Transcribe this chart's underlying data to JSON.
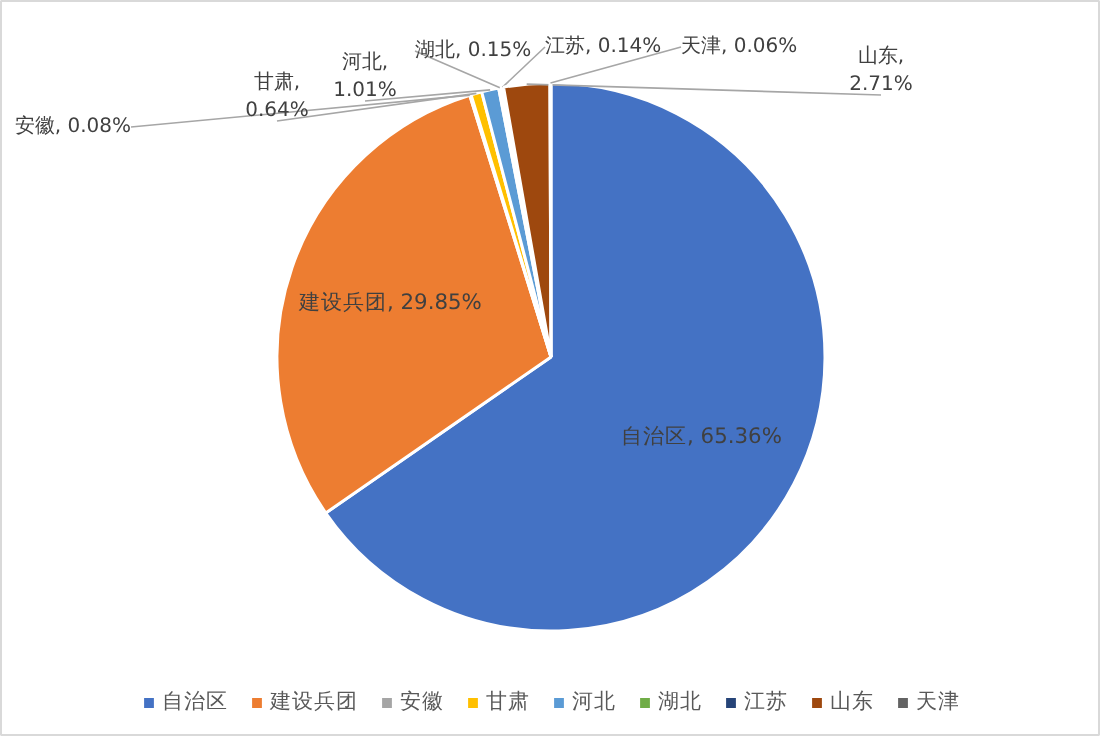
{
  "chart_data": {
    "type": "pie",
    "categories": [
      "自治区",
      "建设兵团",
      "安徽",
      "甘肃",
      "河北",
      "湖北",
      "江苏",
      "山东",
      "天津"
    ],
    "values": [
      65.36,
      29.85,
      0.08,
      0.64,
      1.01,
      0.15,
      0.14,
      2.71,
      0.06
    ],
    "colors": [
      "#4472c4",
      "#ed7d31",
      "#a5a5a5",
      "#ffc000",
      "#5b9bd5",
      "#70ad47",
      "#264478",
      "#9e480e",
      "#636363"
    ],
    "value_labels": [
      "自治区, 65.36%",
      "建设兵团, 29.85%",
      "安徽, 0.08%",
      "甘肃,\n0.64%",
      "河北,\n1.01%",
      "湖北, 0.15%",
      "江苏, 0.14%",
      "山东,\n2.71%",
      "天津, 0.06%"
    ],
    "legend": "bottom"
  }
}
